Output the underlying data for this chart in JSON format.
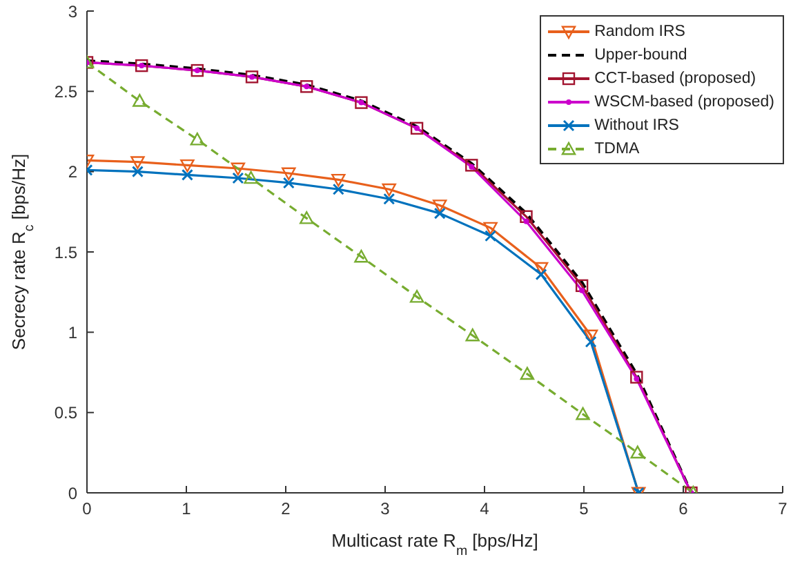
{
  "chart_data": {
    "type": "line",
    "xlabel": "Multicast rate R$_{m}$ [bps/Hz]",
    "ylabel": "Secrecy rate R$_{c}$ [bps/Hz]",
    "xlim": [
      0,
      7
    ],
    "xticks": [
      0,
      1,
      2,
      3,
      4,
      5,
      6,
      7
    ],
    "ylim": [
      0,
      3
    ],
    "yticks": [
      0,
      0.5,
      1,
      1.5,
      2,
      2.5,
      3
    ],
    "grid": false,
    "legend": "top right",
    "series": [
      {
        "name": "Random IRS",
        "color": "#e8601c",
        "marker": "triangle-down",
        "line_style": "solid",
        "x": [
          0,
          0.51,
          1.01,
          1.52,
          2.03,
          2.53,
          3.04,
          3.55,
          4.06,
          4.57,
          5.07,
          5.55
        ],
        "values": [
          2.07,
          2.06,
          2.04,
          2.02,
          1.99,
          1.95,
          1.89,
          1.79,
          1.65,
          1.4,
          0.98,
          0
        ]
      },
      {
        "name": "Upper-bound",
        "color": "#000000",
        "marker": "none",
        "line_style": "dashed",
        "x": [
          0,
          0.55,
          1.11,
          1.66,
          2.21,
          2.76,
          3.32,
          3.87,
          4.42,
          4.98,
          5.53,
          6.08
        ],
        "values": [
          2.69,
          2.67,
          2.64,
          2.6,
          2.54,
          2.44,
          2.28,
          2.05,
          1.74,
          1.31,
          0.74,
          0
        ]
      },
      {
        "name": "CCT-based (proposed)",
        "color": "#a2142f",
        "marker": "square",
        "line_style": "solid",
        "x": [
          0,
          0.55,
          1.11,
          1.66,
          2.21,
          2.76,
          3.32,
          3.87,
          4.42,
          4.98,
          5.53,
          6.08
        ],
        "values": [
          2.68,
          2.66,
          2.63,
          2.59,
          2.53,
          2.43,
          2.27,
          2.04,
          1.72,
          1.29,
          0.72,
          0
        ]
      },
      {
        "name": "WSCM-based (proposed)",
        "color": "#cc00cc",
        "marker": "circle",
        "line_style": "solid",
        "x": [
          0,
          0.55,
          1.11,
          1.66,
          2.21,
          2.76,
          3.32,
          3.87,
          4.42,
          4.98,
          5.53,
          6.08
        ],
        "values": [
          2.68,
          2.66,
          2.63,
          2.59,
          2.53,
          2.43,
          2.27,
          2.03,
          1.69,
          1.26,
          0.71,
          0
        ]
      },
      {
        "name": "Without IRS",
        "color": "#0072bd",
        "marker": "cross",
        "line_style": "solid",
        "x": [
          0,
          0.51,
          1.01,
          1.52,
          2.03,
          2.53,
          3.04,
          3.55,
          4.06,
          4.57,
          5.07,
          5.55
        ],
        "values": [
          2.01,
          2.0,
          1.98,
          1.96,
          1.93,
          1.89,
          1.83,
          1.74,
          1.6,
          1.36,
          0.94,
          0
        ]
      },
      {
        "name": "TDMA",
        "color": "#77ac30",
        "marker": "triangle",
        "line_style": "dashed",
        "x": [
          0,
          0.53,
          1.11,
          1.65,
          2.21,
          2.76,
          3.32,
          3.88,
          4.43,
          4.99,
          5.54,
          6.1
        ],
        "values": [
          2.68,
          2.44,
          2.2,
          1.96,
          1.71,
          1.47,
          1.22,
          0.98,
          0.74,
          0.49,
          0.25,
          0
        ]
      }
    ]
  }
}
